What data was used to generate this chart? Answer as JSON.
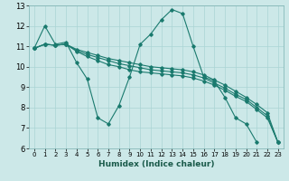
{
  "title": "",
  "xlabel": "Humidex (Indice chaleur)",
  "bg_color": "#cce8e8",
  "grid_color": "#aad4d4",
  "line_color": "#1a7a6e",
  "xlim": [
    -0.5,
    23.5
  ],
  "ylim": [
    6,
    13
  ],
  "yticks": [
    6,
    7,
    8,
    9,
    10,
    11,
    12,
    13
  ],
  "xticks": [
    0,
    1,
    2,
    3,
    4,
    5,
    6,
    7,
    8,
    9,
    10,
    11,
    12,
    13,
    14,
    15,
    16,
    17,
    18,
    19,
    20,
    21,
    22,
    23
  ],
  "lines": [
    [
      10.9,
      12.0,
      11.1,
      11.2,
      10.2,
      9.4,
      7.5,
      7.2,
      8.1,
      9.5,
      11.1,
      11.6,
      12.3,
      12.8,
      12.6,
      11.0,
      9.5,
      9.3,
      8.5,
      7.5,
      7.2,
      6.3,
      null,
      null
    ],
    [
      10.9,
      11.1,
      11.05,
      11.1,
      10.75,
      10.5,
      10.3,
      10.1,
      10.0,
      9.85,
      9.75,
      9.7,
      9.65,
      9.6,
      9.55,
      9.45,
      9.3,
      9.1,
      8.85,
      8.55,
      8.3,
      7.9,
      7.5,
      6.3
    ],
    [
      10.9,
      11.1,
      11.05,
      11.1,
      10.8,
      10.6,
      10.45,
      10.3,
      10.15,
      10.05,
      9.95,
      9.85,
      9.8,
      9.75,
      9.7,
      9.6,
      9.45,
      9.2,
      8.95,
      8.65,
      8.4,
      8.0,
      7.6,
      6.3
    ],
    [
      10.9,
      11.1,
      11.05,
      11.1,
      10.85,
      10.7,
      10.55,
      10.4,
      10.3,
      10.2,
      10.1,
      10.0,
      9.95,
      9.9,
      9.85,
      9.75,
      9.6,
      9.35,
      9.1,
      8.8,
      8.5,
      8.15,
      7.75,
      6.3
    ]
  ]
}
